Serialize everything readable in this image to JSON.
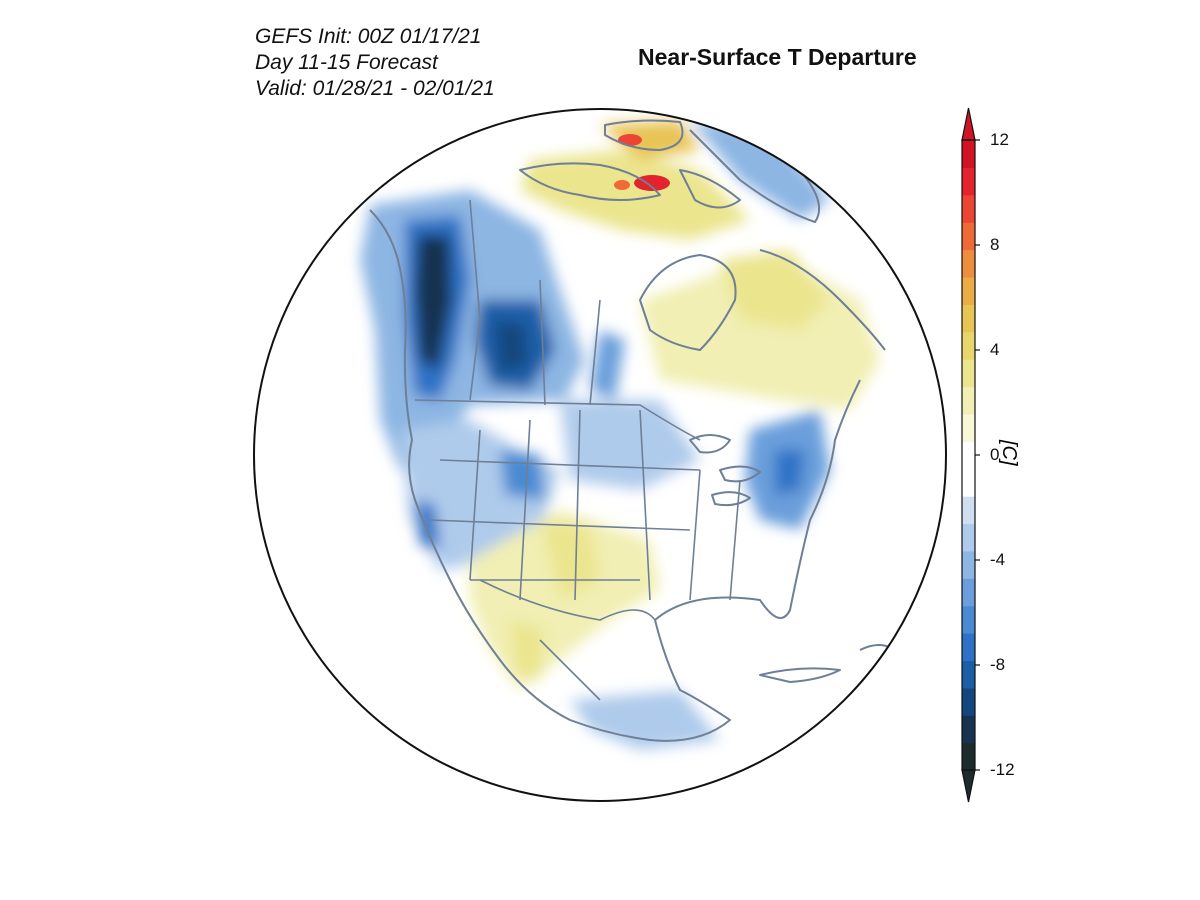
{
  "header": {
    "init_line": "GEFS Init: 00Z 01/17/21",
    "period_line": "Day 11-15 Forecast",
    "valid_line": "Valid: 01/28/21 - 02/01/21",
    "title": "Near-Surface T Departure"
  },
  "colorbar": {
    "unit": "[C]",
    "min": -12,
    "max": 12,
    "ticks": [
      "12",
      "8",
      "4",
      "0",
      "-4",
      "-8",
      "-12"
    ],
    "colors": [
      "#1c2b2b",
      "#18324f",
      "#14477e",
      "#1b5ea8",
      "#2d72c6",
      "#4a8ad2",
      "#6b9fdb",
      "#8db6e3",
      "#afcbeb",
      "#cfdff2",
      "#ffffff",
      "#ffffff",
      "#f8f7d8",
      "#f1efb3",
      "#ebe58e",
      "#e7d66c",
      "#e8c454",
      "#ebac45",
      "#ee8d3b",
      "#ee6a36",
      "#ea4633",
      "#e3232e",
      "#d01424"
    ]
  },
  "map": {
    "projection": "orthographic",
    "region": "North America",
    "land_color": "#ffffff",
    "border_color": "#6e7f96"
  }
}
